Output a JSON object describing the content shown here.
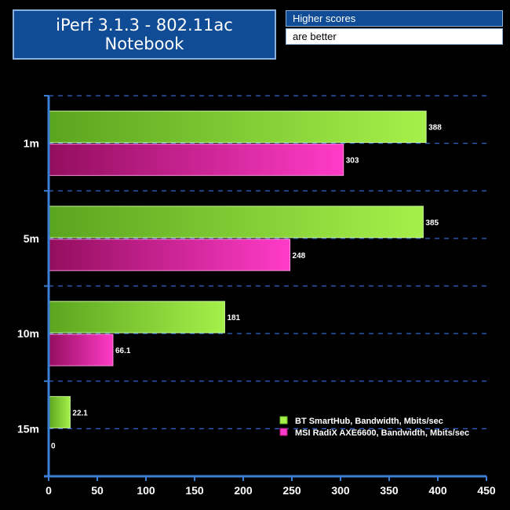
{
  "header": {
    "title_line1": "iPerf 3.1.3 - 802.11ac",
    "title_line2": "Notebook",
    "note_line1": "Higher scores",
    "note_line2": "are better"
  },
  "colors": {
    "background": "#000000",
    "axis": "#3a7fd5",
    "gridline": "#2f66c8",
    "series1_dark": "#5aa51e",
    "series1_light": "#a6f04a",
    "series2_dark": "#930e5e",
    "series2_light": "#ff3bc8"
  },
  "chart_data": {
    "type": "bar",
    "orientation": "horizontal",
    "categories": [
      "1m",
      "5m",
      "10m",
      "15m"
    ],
    "series": [
      {
        "name": "BT SmartHub, Bandwidth, Mbits/sec",
        "values": [
          388,
          385,
          181,
          22.1
        ],
        "labels": [
          "388",
          "385",
          "181",
          "22.1"
        ]
      },
      {
        "name": "MSI RadiX AXE6600, Bandwidth, Mbits/sec",
        "values": [
          303,
          248,
          66.1,
          0
        ],
        "labels": [
          "303",
          "248",
          "66.1",
          "0"
        ]
      }
    ],
    "xlim": [
      0,
      450
    ],
    "xticks": [
      "0",
      "50",
      "100",
      "150",
      "200",
      "250",
      "300",
      "350",
      "400",
      "450"
    ],
    "grid": true,
    "legend_position": "bottom-right"
  }
}
